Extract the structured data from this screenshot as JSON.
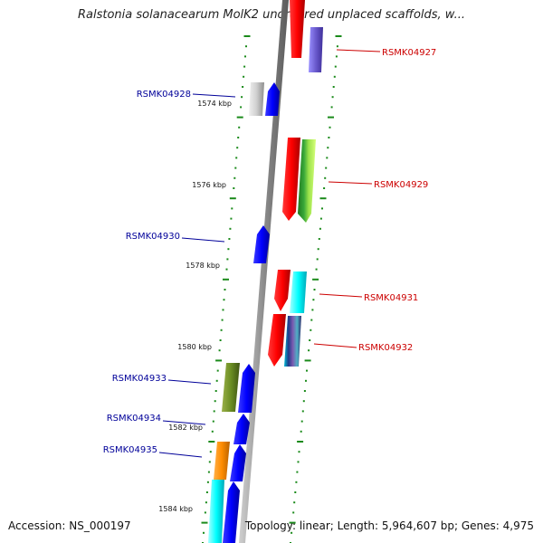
{
  "title": "Ralstonia solanacearum MolK2 unordered unplaced scaffolds, w...",
  "footer": {
    "accession": "Accession: NS_000197",
    "summary": "Topology: linear; Length: 5,964,607 bp; Genes: 4,975"
  },
  "colors": {
    "strand_plus_label": "#cc0000",
    "strand_minus_label": "#000099",
    "tick": "#1a8a1a",
    "axis": "#8c8c8c"
  },
  "scale": [
    "1574 kbp",
    "1576 kbp",
    "1578 kbp",
    "1580 kbp",
    "1582 kbp",
    "1584 kbp"
  ],
  "genes": [
    {
      "label": "RSMK04927",
      "strand": "plus"
    },
    {
      "label": "RSMK04928",
      "strand": "minus"
    },
    {
      "label": "RSMK04929",
      "strand": "plus"
    },
    {
      "label": "RSMK04930",
      "strand": "minus"
    },
    {
      "label": "RSMK04931",
      "strand": "plus"
    },
    {
      "label": "RSMK04932",
      "strand": "plus"
    },
    {
      "label": "RSMK04933",
      "strand": "minus"
    },
    {
      "label": "RSMK04934",
      "strand": "minus"
    },
    {
      "label": "RSMK04935",
      "strand": "minus"
    }
  ]
}
